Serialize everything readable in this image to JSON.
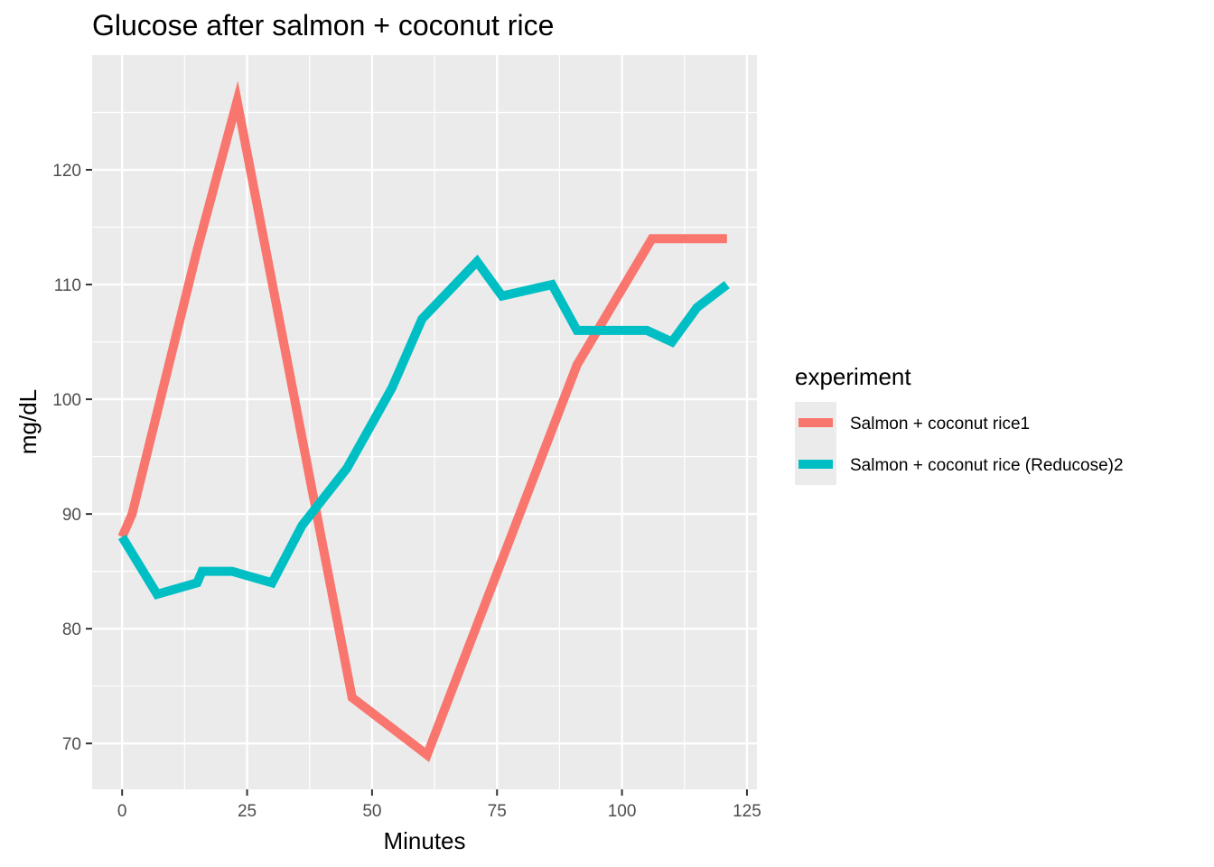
{
  "chart_data": {
    "type": "line",
    "title": "Glucose after salmon + coconut rice",
    "xlabel": "Minutes",
    "ylabel": "mg/dL",
    "xlim": [
      -6,
      127
    ],
    "ylim": [
      66,
      130
    ],
    "x_ticks": [
      0,
      25,
      50,
      75,
      100,
      125
    ],
    "y_ticks": [
      70,
      80,
      90,
      100,
      110,
      120
    ],
    "grid": true,
    "legend": {
      "title": "experiment",
      "position": "right"
    },
    "series": [
      {
        "name": "Salmon + coconut rice1",
        "color": "#F8766D",
        "x": [
          0,
          2,
          15,
          23,
          46,
          61,
          91,
          106,
          121
        ],
        "y": [
          88,
          90,
          113,
          126,
          74,
          69,
          103,
          114,
          114
        ]
      },
      {
        "name": "Salmon + coconut rice (Reducose)2",
        "color": "#00BFC4",
        "x": [
          0,
          7,
          15,
          16,
          22,
          30,
          36,
          45,
          54,
          60,
          71,
          76,
          86,
          91,
          96,
          105,
          110,
          115,
          121
        ],
        "y": [
          88,
          83,
          84,
          85,
          85,
          84,
          89,
          94,
          101,
          107,
          112,
          109,
          110,
          106,
          106,
          106,
          105,
          108,
          110
        ]
      }
    ]
  }
}
